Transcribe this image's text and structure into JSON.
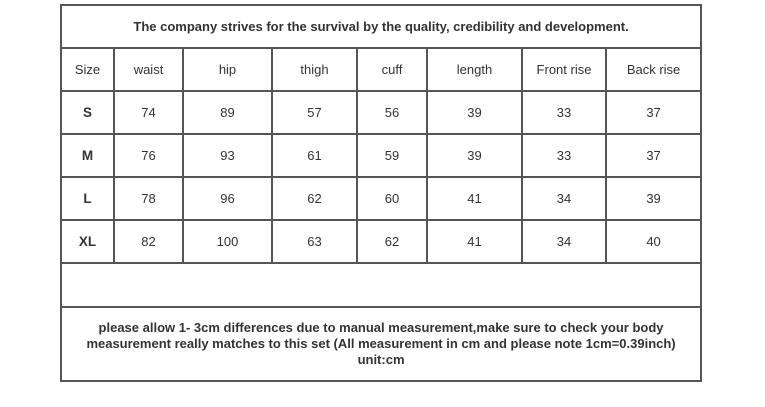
{
  "title": "The company strives for the survival by the quality, credibility and development.",
  "columns": [
    "Size",
    "waist",
    "hip",
    "thigh",
    "cuff",
    "length",
    "Front rise",
    "Back rise"
  ],
  "rows": [
    [
      "S",
      "74",
      "89",
      "57",
      "56",
      "39",
      "33",
      "37"
    ],
    [
      "M",
      "76",
      "93",
      "61",
      "59",
      "39",
      "33",
      "37"
    ],
    [
      "L",
      "78",
      "96",
      "62",
      "60",
      "41",
      "34",
      "39"
    ],
    [
      "XL",
      "82",
      "100",
      "63",
      "62",
      "41",
      "34",
      "40"
    ]
  ],
  "note": {
    "line1": "please allow 1- 3cm differences due to manual measurement,make sure to check your body",
    "line2": "measurement really matches to this set (All measurement in cm and please note 1cm=0.39inch)",
    "line3": "unit:cm"
  }
}
